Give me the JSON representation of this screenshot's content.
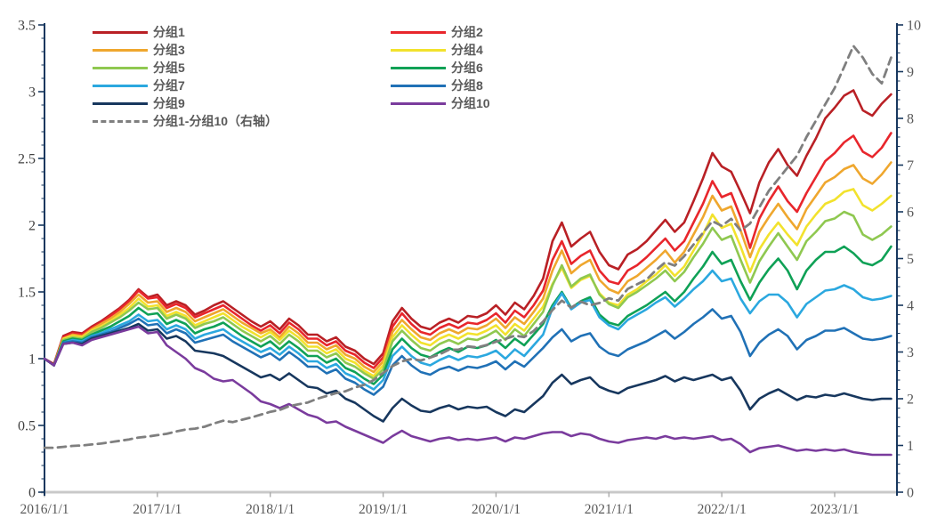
{
  "chart_data": {
    "type": "line",
    "title": "",
    "x_start": "2016/1/1",
    "x_frequency": "monthly",
    "x_points": 91,
    "x_tick_labels": [
      "2016/1/1",
      "2017/1/1",
      "2018/1/1",
      "2019/1/1",
      "2020/1/1",
      "2021/1/1",
      "2022/1/1",
      "2023/1/1"
    ],
    "left_axis": {
      "min": 0,
      "max": 3.5,
      "major_step": 0.5,
      "minor_step": 0.1,
      "tick_labels": [
        "0",
        "0.5",
        "1",
        "1.5",
        "2",
        "2.5",
        "3",
        "3.5"
      ],
      "axis_color": "#17375E",
      "label_color": "#3f3f3f"
    },
    "right_axis": {
      "min": 0,
      "max": 10,
      "major_step": 1,
      "minor_step": 0.2,
      "tick_labels": [
        "0",
        "1",
        "2",
        "3",
        "4",
        "5",
        "6",
        "7",
        "8",
        "9",
        "10"
      ],
      "axis_color": "#17375E",
      "label_color": "#595959"
    },
    "x_axis": {
      "line_color": "#C9C9C9",
      "tick_color": "#ABABAB",
      "grid": false
    },
    "legend_position": "top-left",
    "series": [
      {
        "name": "分组1",
        "axis": "left",
        "color": "#B92025",
        "style": "solid",
        "values": [
          1.0,
          0.96,
          1.17,
          1.2,
          1.19,
          1.24,
          1.28,
          1.33,
          1.38,
          1.44,
          1.52,
          1.46,
          1.48,
          1.4,
          1.43,
          1.4,
          1.33,
          1.36,
          1.4,
          1.43,
          1.38,
          1.33,
          1.28,
          1.24,
          1.28,
          1.22,
          1.3,
          1.25,
          1.18,
          1.18,
          1.13,
          1.16,
          1.09,
          1.06,
          1.0,
          0.96,
          1.04,
          1.28,
          1.38,
          1.3,
          1.24,
          1.22,
          1.27,
          1.3,
          1.27,
          1.32,
          1.31,
          1.34,
          1.4,
          1.33,
          1.42,
          1.37,
          1.47,
          1.6,
          1.88,
          2.02,
          1.84,
          1.9,
          1.95,
          1.8,
          1.7,
          1.67,
          1.78,
          1.82,
          1.88,
          1.96,
          2.04,
          1.95,
          2.02,
          2.18,
          2.35,
          2.54,
          2.44,
          2.4,
          2.25,
          2.09,
          2.32,
          2.47,
          2.57,
          2.45,
          2.37,
          2.52,
          2.65,
          2.8,
          2.88,
          2.97,
          3.01,
          2.86,
          2.82,
          2.91,
          2.98
        ]
      },
      {
        "name": "分组2",
        "axis": "left",
        "color": "#E8262C",
        "style": "solid",
        "values": [
          1.0,
          0.95,
          1.16,
          1.19,
          1.18,
          1.23,
          1.27,
          1.32,
          1.37,
          1.43,
          1.51,
          1.45,
          1.46,
          1.38,
          1.41,
          1.38,
          1.31,
          1.34,
          1.37,
          1.4,
          1.35,
          1.3,
          1.25,
          1.21,
          1.25,
          1.19,
          1.27,
          1.22,
          1.15,
          1.15,
          1.1,
          1.13,
          1.06,
          1.03,
          0.97,
          0.93,
          1.01,
          1.24,
          1.34,
          1.26,
          1.2,
          1.18,
          1.23,
          1.26,
          1.23,
          1.27,
          1.26,
          1.29,
          1.34,
          1.27,
          1.36,
          1.31,
          1.4,
          1.51,
          1.74,
          1.88,
          1.71,
          1.77,
          1.81,
          1.66,
          1.58,
          1.56,
          1.66,
          1.7,
          1.76,
          1.83,
          1.9,
          1.81,
          1.88,
          2.02,
          2.16,
          2.33,
          2.21,
          2.24,
          2.06,
          1.83,
          2.05,
          2.18,
          2.29,
          2.18,
          2.1,
          2.24,
          2.36,
          2.48,
          2.54,
          2.62,
          2.67,
          2.55,
          2.51,
          2.58,
          2.69
        ]
      },
      {
        "name": "分组3",
        "axis": "left",
        "color": "#EFA72E",
        "style": "solid",
        "values": [
          1.0,
          0.95,
          1.15,
          1.18,
          1.17,
          1.22,
          1.26,
          1.3,
          1.35,
          1.41,
          1.48,
          1.42,
          1.43,
          1.35,
          1.38,
          1.35,
          1.28,
          1.31,
          1.34,
          1.37,
          1.32,
          1.27,
          1.23,
          1.19,
          1.22,
          1.16,
          1.24,
          1.19,
          1.12,
          1.12,
          1.07,
          1.1,
          1.03,
          1.0,
          0.94,
          0.9,
          0.98,
          1.2,
          1.29,
          1.22,
          1.16,
          1.14,
          1.19,
          1.22,
          1.19,
          1.23,
          1.22,
          1.25,
          1.3,
          1.23,
          1.31,
          1.26,
          1.35,
          1.45,
          1.66,
          1.81,
          1.64,
          1.7,
          1.74,
          1.59,
          1.52,
          1.49,
          1.58,
          1.62,
          1.68,
          1.74,
          1.81,
          1.72,
          1.8,
          1.93,
          2.06,
          2.22,
          2.11,
          2.14,
          1.96,
          1.76,
          1.95,
          2.06,
          2.16,
          2.06,
          1.97,
          2.12,
          2.22,
          2.32,
          2.36,
          2.42,
          2.45,
          2.35,
          2.31,
          2.38,
          2.47
        ]
      },
      {
        "name": "分组4",
        "axis": "left",
        "color": "#F2E22D",
        "style": "solid",
        "values": [
          1.0,
          0.95,
          1.15,
          1.17,
          1.16,
          1.21,
          1.24,
          1.28,
          1.33,
          1.38,
          1.45,
          1.39,
          1.4,
          1.32,
          1.35,
          1.32,
          1.25,
          1.28,
          1.31,
          1.34,
          1.29,
          1.24,
          1.2,
          1.16,
          1.2,
          1.14,
          1.21,
          1.16,
          1.09,
          1.09,
          1.04,
          1.07,
          1.0,
          0.97,
          0.91,
          0.87,
          0.95,
          1.16,
          1.25,
          1.18,
          1.12,
          1.1,
          1.15,
          1.18,
          1.15,
          1.19,
          1.18,
          1.21,
          1.25,
          1.18,
          1.26,
          1.21,
          1.3,
          1.39,
          1.56,
          1.68,
          1.53,
          1.59,
          1.62,
          1.49,
          1.42,
          1.4,
          1.48,
          1.52,
          1.58,
          1.63,
          1.7,
          1.62,
          1.69,
          1.81,
          1.93,
          2.08,
          1.98,
          2.01,
          1.84,
          1.65,
          1.82,
          1.93,
          2.02,
          1.93,
          1.85,
          1.99,
          2.08,
          2.16,
          2.19,
          2.25,
          2.27,
          2.15,
          2.11,
          2.16,
          2.22
        ]
      },
      {
        "name": "分组5",
        "axis": "left",
        "color": "#8FC850",
        "style": "solid",
        "values": [
          1.0,
          0.95,
          1.14,
          1.16,
          1.15,
          1.2,
          1.23,
          1.27,
          1.31,
          1.36,
          1.42,
          1.37,
          1.38,
          1.3,
          1.33,
          1.3,
          1.23,
          1.26,
          1.28,
          1.31,
          1.26,
          1.21,
          1.17,
          1.13,
          1.17,
          1.11,
          1.18,
          1.13,
          1.06,
          1.06,
          1.01,
          1.04,
          0.97,
          0.94,
          0.89,
          0.85,
          0.92,
          1.13,
          1.21,
          1.14,
          1.08,
          1.06,
          1.11,
          1.14,
          1.11,
          1.15,
          1.14,
          1.17,
          1.21,
          1.14,
          1.22,
          1.17,
          1.26,
          1.35,
          1.55,
          1.7,
          1.54,
          1.6,
          1.63,
          1.48,
          1.41,
          1.38,
          1.46,
          1.5,
          1.55,
          1.6,
          1.66,
          1.58,
          1.65,
          1.76,
          1.86,
          1.98,
          1.89,
          1.92,
          1.74,
          1.57,
          1.73,
          1.84,
          1.94,
          1.84,
          1.74,
          1.88,
          1.95,
          2.03,
          2.05,
          2.1,
          2.07,
          1.93,
          1.89,
          1.93,
          1.99
        ]
      },
      {
        "name": "分组6",
        "axis": "left",
        "color": "#0FA156",
        "style": "solid",
        "values": [
          1.0,
          0.95,
          1.13,
          1.15,
          1.14,
          1.18,
          1.21,
          1.24,
          1.28,
          1.32,
          1.38,
          1.33,
          1.34,
          1.26,
          1.29,
          1.26,
          1.19,
          1.22,
          1.24,
          1.27,
          1.22,
          1.17,
          1.13,
          1.09,
          1.13,
          1.07,
          1.13,
          1.08,
          1.02,
          1.02,
          0.97,
          1.0,
          0.93,
          0.9,
          0.85,
          0.81,
          0.88,
          1.07,
          1.15,
          1.08,
          1.03,
          1.01,
          1.05,
          1.08,
          1.05,
          1.09,
          1.08,
          1.1,
          1.14,
          1.08,
          1.15,
          1.1,
          1.18,
          1.26,
          1.4,
          1.5,
          1.38,
          1.43,
          1.46,
          1.33,
          1.27,
          1.25,
          1.32,
          1.36,
          1.4,
          1.45,
          1.5,
          1.43,
          1.5,
          1.6,
          1.69,
          1.8,
          1.71,
          1.74,
          1.58,
          1.44,
          1.57,
          1.67,
          1.75,
          1.66,
          1.52,
          1.66,
          1.74,
          1.8,
          1.8,
          1.84,
          1.79,
          1.72,
          1.7,
          1.74,
          1.84
        ]
      },
      {
        "name": "分组7",
        "axis": "left",
        "color": "#2BA8DF",
        "style": "solid",
        "values": [
          1.0,
          0.95,
          1.12,
          1.14,
          1.13,
          1.17,
          1.19,
          1.22,
          1.25,
          1.28,
          1.33,
          1.28,
          1.29,
          1.22,
          1.25,
          1.22,
          1.15,
          1.18,
          1.2,
          1.22,
          1.17,
          1.13,
          1.09,
          1.05,
          1.08,
          1.03,
          1.09,
          1.04,
          0.98,
          0.98,
          0.93,
          0.96,
          0.89,
          0.86,
          0.81,
          0.77,
          0.84,
          1.02,
          1.09,
          1.02,
          0.97,
          0.95,
          0.99,
          1.02,
          0.99,
          1.02,
          1.01,
          1.03,
          1.06,
          1.0,
          1.07,
          1.02,
          1.1,
          1.18,
          1.38,
          1.49,
          1.37,
          1.42,
          1.44,
          1.31,
          1.25,
          1.22,
          1.29,
          1.33,
          1.37,
          1.42,
          1.46,
          1.39,
          1.45,
          1.52,
          1.58,
          1.66,
          1.58,
          1.6,
          1.45,
          1.34,
          1.43,
          1.48,
          1.48,
          1.42,
          1.31,
          1.41,
          1.46,
          1.51,
          1.52,
          1.55,
          1.52,
          1.46,
          1.44,
          1.45,
          1.47
        ]
      },
      {
        "name": "分组8",
        "axis": "left",
        "color": "#2071B6",
        "style": "solid",
        "values": [
          1.0,
          0.95,
          1.12,
          1.13,
          1.12,
          1.16,
          1.18,
          1.2,
          1.23,
          1.26,
          1.3,
          1.25,
          1.26,
          1.19,
          1.22,
          1.19,
          1.12,
          1.14,
          1.16,
          1.18,
          1.13,
          1.09,
          1.05,
          1.01,
          1.04,
          0.99,
          1.05,
          1.0,
          0.94,
          0.94,
          0.89,
          0.92,
          0.85,
          0.82,
          0.77,
          0.73,
          0.79,
          0.95,
          1.02,
          0.95,
          0.9,
          0.88,
          0.92,
          0.94,
          0.91,
          0.94,
          0.93,
          0.95,
          0.98,
          0.92,
          0.98,
          0.94,
          1.01,
          1.08,
          1.16,
          1.22,
          1.13,
          1.17,
          1.19,
          1.09,
          1.04,
          1.02,
          1.07,
          1.1,
          1.13,
          1.17,
          1.21,
          1.15,
          1.2,
          1.26,
          1.31,
          1.37,
          1.3,
          1.32,
          1.2,
          1.02,
          1.12,
          1.18,
          1.22,
          1.17,
          1.07,
          1.14,
          1.17,
          1.21,
          1.21,
          1.23,
          1.19,
          1.15,
          1.14,
          1.15,
          1.17
        ]
      },
      {
        "name": "分组9",
        "axis": "left",
        "color": "#17375E",
        "style": "solid",
        "values": [
          1.0,
          0.95,
          1.11,
          1.12,
          1.11,
          1.15,
          1.17,
          1.19,
          1.21,
          1.23,
          1.26,
          1.21,
          1.22,
          1.15,
          1.17,
          1.13,
          1.06,
          1.05,
          1.04,
          1.02,
          0.98,
          0.94,
          0.9,
          0.86,
          0.88,
          0.84,
          0.89,
          0.84,
          0.79,
          0.78,
          0.74,
          0.76,
          0.7,
          0.67,
          0.62,
          0.57,
          0.53,
          0.63,
          0.7,
          0.65,
          0.61,
          0.6,
          0.63,
          0.65,
          0.62,
          0.64,
          0.63,
          0.64,
          0.6,
          0.57,
          0.62,
          0.6,
          0.66,
          0.72,
          0.82,
          0.88,
          0.81,
          0.84,
          0.86,
          0.79,
          0.76,
          0.74,
          0.78,
          0.8,
          0.82,
          0.84,
          0.87,
          0.83,
          0.86,
          0.84,
          0.86,
          0.88,
          0.84,
          0.86,
          0.76,
          0.62,
          0.7,
          0.74,
          0.77,
          0.73,
          0.69,
          0.72,
          0.71,
          0.73,
          0.72,
          0.74,
          0.72,
          0.7,
          0.69,
          0.7,
          0.7
        ]
      },
      {
        "name": "分组10",
        "axis": "left",
        "color": "#7A3B9D",
        "style": "solid",
        "values": [
          1.0,
          0.95,
          1.11,
          1.12,
          1.1,
          1.14,
          1.16,
          1.18,
          1.2,
          1.22,
          1.24,
          1.19,
          1.2,
          1.1,
          1.05,
          1.0,
          0.93,
          0.9,
          0.85,
          0.83,
          0.84,
          0.79,
          0.74,
          0.68,
          0.66,
          0.63,
          0.66,
          0.62,
          0.58,
          0.56,
          0.52,
          0.53,
          0.49,
          0.46,
          0.43,
          0.4,
          0.37,
          0.42,
          0.46,
          0.42,
          0.4,
          0.38,
          0.4,
          0.41,
          0.39,
          0.4,
          0.39,
          0.4,
          0.41,
          0.38,
          0.41,
          0.4,
          0.42,
          0.44,
          0.45,
          0.45,
          0.42,
          0.44,
          0.43,
          0.4,
          0.38,
          0.37,
          0.39,
          0.4,
          0.41,
          0.4,
          0.42,
          0.4,
          0.41,
          0.4,
          0.41,
          0.42,
          0.39,
          0.4,
          0.36,
          0.3,
          0.33,
          0.34,
          0.35,
          0.33,
          0.31,
          0.32,
          0.31,
          0.32,
          0.31,
          0.32,
          0.3,
          0.29,
          0.28,
          0.28,
          0.28
        ]
      },
      {
        "name": "分组1-分组10（右轴）",
        "axis": "right",
        "color": "#7F7F7F",
        "style": "dashed",
        "values": [
          0.95,
          0.95,
          0.97,
          0.99,
          1.0,
          1.02,
          1.04,
          1.07,
          1.1,
          1.13,
          1.17,
          1.19,
          1.22,
          1.25,
          1.3,
          1.34,
          1.36,
          1.4,
          1.47,
          1.53,
          1.5,
          1.55,
          1.6,
          1.66,
          1.72,
          1.76,
          1.84,
          1.88,
          1.92,
          2.0,
          2.06,
          2.12,
          2.16,
          2.24,
          2.3,
          2.4,
          2.55,
          2.7,
          2.8,
          2.85,
          2.82,
          2.88,
          2.95,
          3.05,
          3.05,
          3.12,
          3.1,
          3.15,
          3.22,
          3.28,
          3.35,
          3.32,
          3.45,
          3.65,
          3.9,
          4.1,
          3.95,
          4.08,
          4.0,
          4.05,
          4.15,
          4.1,
          4.35,
          4.45,
          4.55,
          4.75,
          4.92,
          4.85,
          5.05,
          5.3,
          5.55,
          5.8,
          5.7,
          5.85,
          5.6,
          5.75,
          6.1,
          6.45,
          6.7,
          6.95,
          7.2,
          7.6,
          7.95,
          8.3,
          8.65,
          9.1,
          9.55,
          9.3,
          8.95,
          8.75,
          9.3
        ]
      }
    ]
  }
}
